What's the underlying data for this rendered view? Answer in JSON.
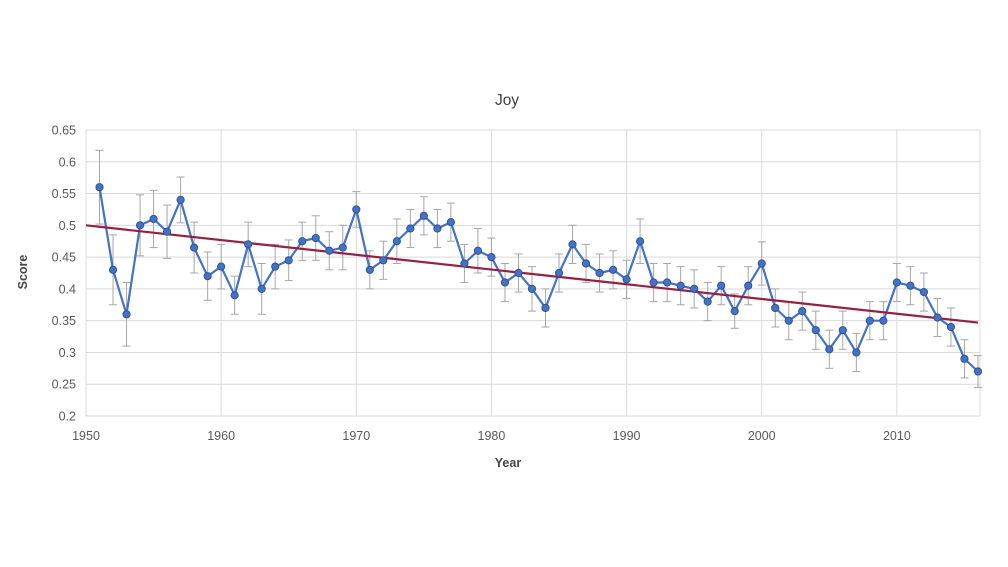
{
  "page": {
    "background": "#ffffff"
  },
  "chart_data": {
    "type": "line",
    "title": "Joy",
    "xlabel": "Year",
    "ylabel": "Score",
    "xlim": [
      1950,
      2016.15
    ],
    "ylim": [
      0.2,
      0.65
    ],
    "grid": true,
    "legend": "none",
    "x_ticks": [
      1950,
      1960,
      1970,
      1980,
      1990,
      2000,
      2010
    ],
    "x_tick_labels": [
      "1950",
      "1960",
      "1970",
      "1980",
      "1990",
      "2000",
      "2010"
    ],
    "y_ticks": [
      0.2,
      0.25,
      0.3,
      0.35,
      0.4,
      0.45,
      0.5,
      0.55,
      0.6,
      0.65
    ],
    "y_tick_labels": [
      "0.2",
      "0.25",
      "0.3",
      "0.35",
      "0.4",
      "0.45",
      "0.5",
      "0.55",
      "0.6",
      "0.65"
    ],
    "series": [
      {
        "name": "Joy score",
        "marker": "circle",
        "color": "#4472C4",
        "marker_edge_color": "#2F5496",
        "x": [
          1951,
          1952,
          1953,
          1954,
          1955,
          1956,
          1957,
          1958,
          1959,
          1960,
          1961,
          1962,
          1963,
          1964,
          1965,
          1966,
          1967,
          1968,
          1969,
          1970,
          1971,
          1972,
          1973,
          1974,
          1975,
          1976,
          1977,
          1978,
          1979,
          1980,
          1981,
          1982,
          1983,
          1984,
          1985,
          1986,
          1987,
          1988,
          1989,
          1990,
          1991,
          1992,
          1993,
          1994,
          1995,
          1996,
          1997,
          1998,
          1999,
          2000,
          2001,
          2002,
          2003,
          2004,
          2005,
          2006,
          2007,
          2008,
          2009,
          2010,
          2011,
          2012,
          2013,
          2014,
          2015,
          2016
        ],
        "y": [
          0.56,
          0.43,
          0.36,
          0.5,
          0.51,
          0.49,
          0.54,
          0.465,
          0.42,
          0.435,
          0.39,
          0.47,
          0.4,
          0.435,
          0.445,
          0.475,
          0.48,
          0.46,
          0.465,
          0.525,
          0.43,
          0.445,
          0.475,
          0.495,
          0.515,
          0.495,
          0.505,
          0.44,
          0.46,
          0.45,
          0.41,
          0.425,
          0.4,
          0.37,
          0.425,
          0.47,
          0.44,
          0.425,
          0.43,
          0.415,
          0.475,
          0.41,
          0.41,
          0.405,
          0.4,
          0.38,
          0.405,
          0.365,
          0.405,
          0.44,
          0.37,
          0.35,
          0.365,
          0.335,
          0.305,
          0.335,
          0.3,
          0.35,
          0.35,
          0.41,
          0.405,
          0.395,
          0.355,
          0.34,
          0.29,
          0.27
        ],
        "error": [
          0.058,
          0.055,
          0.05,
          0.048,
          0.045,
          0.042,
          0.036,
          0.04,
          0.038,
          0.035,
          0.03,
          0.035,
          0.04,
          0.035,
          0.032,
          0.03,
          0.035,
          0.03,
          0.035,
          0.028,
          0.03,
          0.03,
          0.035,
          0.03,
          0.03,
          0.03,
          0.03,
          0.03,
          0.035,
          0.03,
          0.03,
          0.03,
          0.035,
          0.03,
          0.03,
          0.03,
          0.03,
          0.03,
          0.03,
          0.03,
          0.035,
          0.03,
          0.03,
          0.03,
          0.03,
          0.03,
          0.03,
          0.027,
          0.03,
          0.034,
          0.03,
          0.03,
          0.03,
          0.03,
          0.03,
          0.03,
          0.03,
          0.03,
          0.03,
          0.03,
          0.03,
          0.03,
          0.03,
          0.03,
          0.03,
          0.025
        ]
      }
    ],
    "trendline": {
      "x1": 1950,
      "y1": 0.5,
      "x2": 2016,
      "y2": 0.347,
      "color": "#96203F"
    },
    "colors": {
      "gridline": "#D9D9D9",
      "error_bar": "#A6A6A6",
      "tick_text": "#595959",
      "title_text": "#404040"
    }
  }
}
